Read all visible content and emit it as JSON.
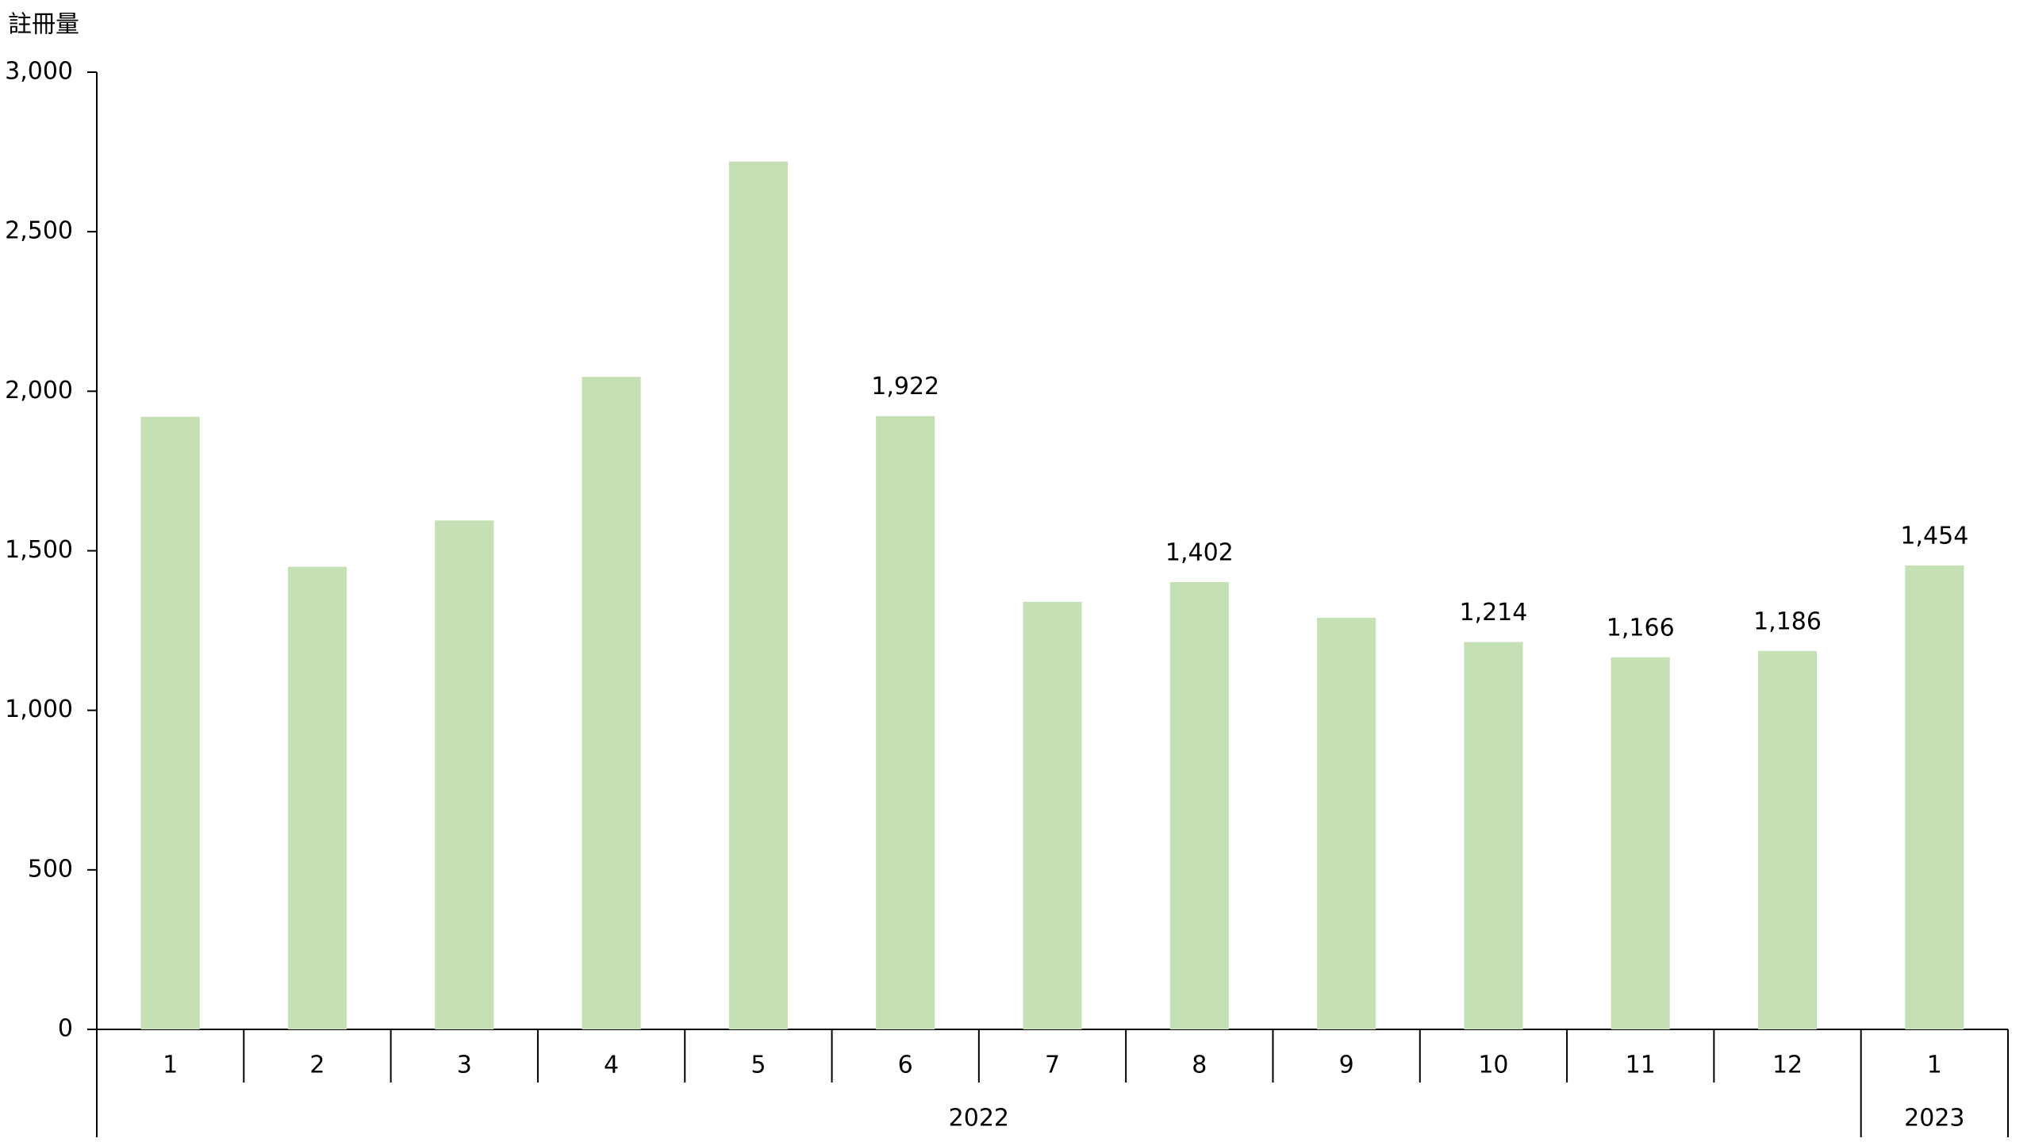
{
  "chart_data": {
    "type": "bar",
    "y_label": "註冊量",
    "groups": [
      {
        "label": "2022",
        "categories": [
          "1",
          "2",
          "3",
          "4",
          "5",
          "6",
          "7",
          "8",
          "9",
          "10",
          "11",
          "12"
        ]
      },
      {
        "label": "2023",
        "categories": [
          "1"
        ]
      }
    ],
    "values": [
      1920,
      1450,
      1595,
      2045,
      2720,
      1922,
      1340,
      1402,
      1290,
      1214,
      1166,
      1186,
      1454
    ],
    "value_labels": [
      null,
      null,
      null,
      null,
      null,
      "1,922",
      null,
      "1,402",
      null,
      "1,214",
      "1,166",
      "1,186",
      "1,454"
    ],
    "color": "#c5e0b4",
    "ylim": [
      0,
      3000
    ],
    "yticks": [
      0,
      500,
      {
        "value": 1000,
        "label": "1,000"
      },
      {
        "value": 1500,
        "label": "1,500"
      },
      {
        "value": 2000,
        "label": "2,000"
      },
      {
        "value": 2500,
        "label": "2,500"
      },
      {
        "value": 3000,
        "label": "3,000"
      }
    ]
  }
}
